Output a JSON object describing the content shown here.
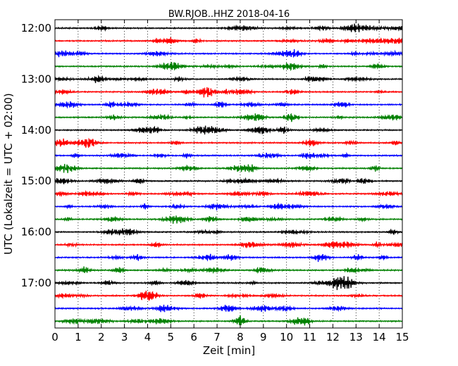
{
  "chart_data": {
    "type": "line",
    "title": "BW.RJOB..HHZ 2018-04-16",
    "xlabel": "Zeit  [min]",
    "ylabel": "UTC (Lokalzeit = UTC + 02:00)",
    "xlim": [
      0,
      15
    ],
    "x_ticks": [
      0,
      1,
      2,
      3,
      4,
      5,
      6,
      7,
      8,
      9,
      10,
      11,
      12,
      13,
      14,
      15
    ],
    "y_tick_labels": [
      "12:00",
      "13:00",
      "14:00",
      "15:00",
      "16:00",
      "17:00"
    ],
    "trace_colors": [
      "#000000",
      "#ff0000",
      "#0000ff",
      "#008000"
    ],
    "grid": "vertical dotted at each minute",
    "traces": [
      {
        "start": "12:00",
        "color": "#000000"
      },
      {
        "start": "12:15",
        "color": "#ff0000"
      },
      {
        "start": "12:30",
        "color": "#0000ff"
      },
      {
        "start": "12:45",
        "color": "#008000"
      },
      {
        "start": "13:00",
        "color": "#000000"
      },
      {
        "start": "13:15",
        "color": "#ff0000"
      },
      {
        "start": "13:30",
        "color": "#0000ff"
      },
      {
        "start": "13:45",
        "color": "#008000"
      },
      {
        "start": "14:00",
        "color": "#000000"
      },
      {
        "start": "14:15",
        "color": "#ff0000"
      },
      {
        "start": "14:30",
        "color": "#0000ff"
      },
      {
        "start": "14:45",
        "color": "#008000"
      },
      {
        "start": "15:00",
        "color": "#000000"
      },
      {
        "start": "15:15",
        "color": "#ff0000"
      },
      {
        "start": "15:30",
        "color": "#0000ff"
      },
      {
        "start": "15:45",
        "color": "#008000"
      },
      {
        "start": "16:00",
        "color": "#000000"
      },
      {
        "start": "16:15",
        "color": "#ff0000"
      },
      {
        "start": "16:30",
        "color": "#0000ff"
      },
      {
        "start": "16:45",
        "color": "#008000"
      },
      {
        "start": "17:00",
        "color": "#000000"
      },
      {
        "start": "17:15",
        "color": "#ff0000"
      },
      {
        "start": "17:30",
        "color": "#0000ff"
      },
      {
        "start": "17:45",
        "color": "#008000"
      }
    ]
  }
}
